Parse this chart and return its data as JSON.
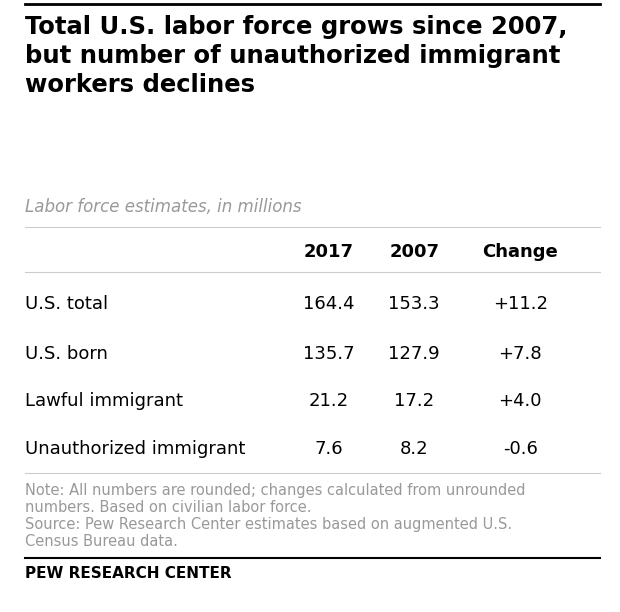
{
  "title": "Total U.S. labor force grows since 2007,\nbut number of unauthorized immigrant\nworkers declines",
  "subtitle": "Labor force estimates, in millions",
  "columns": [
    "",
    "2017",
    "2007",
    "Change"
  ],
  "rows": [
    [
      "U.S. total",
      "164.4",
      "153.3",
      "+11.2"
    ],
    [
      "U.S. born",
      "135.7",
      "127.9",
      "+7.8"
    ],
    [
      "Lawful immigrant",
      "21.2",
      "17.2",
      "+4.0"
    ],
    [
      "Unauthorized immigrant",
      "7.6",
      "8.2",
      "-0.6"
    ]
  ],
  "note_line1": "Note: All numbers are rounded; changes calculated from unrounded",
  "note_line2": "numbers. Based on civilian labor force.",
  "note_line3": "Source: Pew Research Center estimates based on augmented U.S.",
  "note_line4": "Census Bureau data.",
  "footer": "PEW RESEARCH CENTER",
  "bg_color": "#ffffff",
  "title_color": "#000000",
  "subtitle_color": "#999999",
  "table_text_color": "#000000",
  "note_color": "#999999",
  "footer_color": "#000000",
  "title_fontsize": 17.5,
  "subtitle_fontsize": 12,
  "header_fontsize": 13,
  "cell_fontsize": 13,
  "note_fontsize": 10.5,
  "footer_fontsize": 11
}
